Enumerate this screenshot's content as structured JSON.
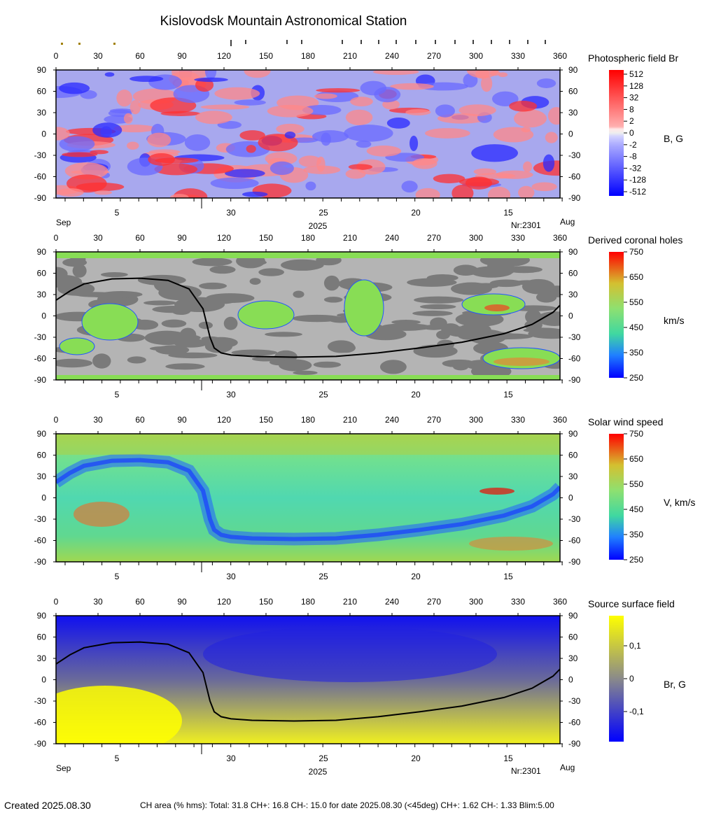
{
  "title": "Kislovodsk Mountain Astronomical Station",
  "chart_data": [
    {
      "type": "heatmap",
      "title": "Photospheric field Br",
      "colorbar_unit": "B, G",
      "colorbar_ticks": [
        "512",
        "128",
        "32",
        "8",
        "2",
        "0",
        "-2",
        "-8",
        "-32",
        "-128",
        "-512"
      ],
      "xticks": [
        "0",
        "30",
        "60",
        "90",
        "120",
        "150",
        "180",
        "210",
        "240",
        "270",
        "300",
        "330",
        "360"
      ],
      "yticks": [
        "90",
        "60",
        "30",
        "0",
        "-30",
        "-60",
        "-90"
      ],
      "date_ticks": [
        "5",
        "30",
        "25",
        "20",
        "15"
      ],
      "month_left": "Sep",
      "month_right": "Aug",
      "year": "2025",
      "rotation": "Nr:2301",
      "xlim": [
        0,
        360
      ],
      "ylim": [
        -90,
        90
      ]
    },
    {
      "type": "heatmap",
      "title": "Derived coronal holes",
      "colorbar_unit": "km/s",
      "colorbar_ticks": [
        "750",
        "650",
        "550",
        "450",
        "350",
        "250"
      ],
      "xticks": [
        "0",
        "30",
        "60",
        "90",
        "120",
        "150",
        "180",
        "210",
        "240",
        "270",
        "300",
        "330",
        "360"
      ],
      "yticks": [
        "90",
        "60",
        "30",
        "0",
        "-30",
        "-60",
        "-90"
      ],
      "date_ticks": [
        "5",
        "30",
        "25",
        "20",
        "15"
      ],
      "xlim": [
        0,
        360
      ],
      "ylim": [
        -90,
        90
      ]
    },
    {
      "type": "heatmap",
      "title": "Solar wind speed",
      "colorbar_unit": "V, km/s",
      "colorbar_ticks": [
        "750",
        "650",
        "550",
        "450",
        "350",
        "250"
      ],
      "xticks": [
        "0",
        "30",
        "60",
        "90",
        "120",
        "150",
        "180",
        "210",
        "240",
        "270",
        "300",
        "330",
        "360"
      ],
      "yticks": [
        "90",
        "60",
        "30",
        "0",
        "-30",
        "-60",
        "-90"
      ],
      "date_ticks": [
        "5",
        "30",
        "25",
        "20",
        "15"
      ],
      "xlim": [
        0,
        360
      ],
      "ylim": [
        -90,
        90
      ]
    },
    {
      "type": "heatmap",
      "title": "Source surface field",
      "colorbar_unit": "Br, G",
      "colorbar_ticks": [
        "0,1",
        "0",
        "-0,1"
      ],
      "xticks": [
        "0",
        "30",
        "60",
        "90",
        "120",
        "150",
        "180",
        "210",
        "240",
        "270",
        "300",
        "330",
        "360"
      ],
      "yticks": [
        "90",
        "60",
        "30",
        "0",
        "-30",
        "-60",
        "-90"
      ],
      "date_ticks": [
        "5",
        "30",
        "25",
        "20",
        "15"
      ],
      "month_left": "Sep",
      "month_right": "Aug",
      "year": "2025",
      "rotation": "Nr:2301",
      "xlim": [
        0,
        360
      ],
      "ylim": [
        -90,
        90
      ]
    }
  ],
  "neutral_line": {
    "lon": [
      0,
      10,
      20,
      40,
      60,
      80,
      95,
      105,
      110,
      113,
      118,
      125,
      140,
      170,
      200,
      230,
      260,
      290,
      320,
      340,
      355,
      360
    ],
    "lat": [
      22,
      35,
      45,
      52,
      53,
      50,
      38,
      10,
      -30,
      -45,
      -52,
      -55,
      -57,
      -58,
      -57,
      -52,
      -45,
      -37,
      -25,
      -12,
      5,
      15
    ]
  },
  "footer": {
    "created": "Created  2025.08.30",
    "ch_area": "CH area (% hms): Total: 31.8 CH+: 16.8   CH-: 15.0 for date 2025.08.30 (<45deg) CH+: 1.62    CH-: 1.33 Blim:5.00"
  }
}
